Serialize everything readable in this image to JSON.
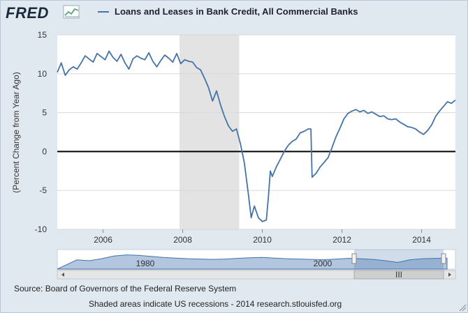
{
  "brand": {
    "logo_text": "FRED"
  },
  "chart_data": {
    "type": "line",
    "title": "Loans and Leases in Bank Credit, All Commercial Banks",
    "ylabel": "(Percent Change from Year Ago)",
    "xlabel": "",
    "ylim": [
      -10,
      15
    ],
    "xlim": [
      2004.85,
      2014.85
    ],
    "yticks": [
      "15",
      "10",
      "5",
      "0",
      "-5",
      "-10"
    ],
    "xticks": [
      "2006",
      "2008",
      "2010",
      "2012",
      "2014"
    ],
    "grid": true,
    "legend": "top",
    "colors": {
      "series": "#4572a7",
      "recession": "#e3e3e3",
      "zero_line": "#000000"
    },
    "recessions": [
      [
        2007.92,
        2009.42
      ]
    ],
    "series": [
      {
        "name": "Loans and Leases in Bank Credit, All Commercial Banks",
        "x": [
          2004.85,
          2004.95,
          2005.05,
          2005.15,
          2005.25,
          2005.35,
          2005.45,
          2005.55,
          2005.65,
          2005.75,
          2005.85,
          2005.95,
          2006.05,
          2006.15,
          2006.25,
          2006.35,
          2006.45,
          2006.55,
          2006.65,
          2006.75,
          2006.85,
          2006.95,
          2007.05,
          2007.15,
          2007.25,
          2007.35,
          2007.45,
          2007.55,
          2007.65,
          2007.75,
          2007.85,
          2007.95,
          2008.05,
          2008.15,
          2008.25,
          2008.35,
          2008.45,
          2008.55,
          2008.65,
          2008.75,
          2008.85,
          2008.95,
          2009.05,
          2009.15,
          2009.25,
          2009.35,
          2009.45,
          2009.55,
          2009.65,
          2009.72,
          2009.8,
          2009.9,
          2010.0,
          2010.1,
          2010.15,
          2010.2,
          2010.25,
          2010.35,
          2010.45,
          2010.55,
          2010.65,
          2010.75,
          2010.85,
          2010.95,
          2011.05,
          2011.15,
          2011.22,
          2011.25,
          2011.35,
          2011.45,
          2011.55,
          2011.65,
          2011.75,
          2011.85,
          2011.95,
          2012.05,
          2012.15,
          2012.25,
          2012.35,
          2012.45,
          2012.55,
          2012.65,
          2012.75,
          2012.85,
          2012.95,
          2013.05,
          2013.15,
          2013.25,
          2013.35,
          2013.45,
          2013.55,
          2013.65,
          2013.75,
          2013.85,
          2013.95,
          2014.05,
          2014.15,
          2014.25,
          2014.35,
          2014.45,
          2014.55,
          2014.65,
          2014.75,
          2014.85
        ],
        "values": [
          10.2,
          11.4,
          9.8,
          10.5,
          10.9,
          10.6,
          11.4,
          12.3,
          11.9,
          11.5,
          12.6,
          12.2,
          11.8,
          12.9,
          12.1,
          11.6,
          12.5,
          11.4,
          10.6,
          11.9,
          12.3,
          12.0,
          11.8,
          12.7,
          11.6,
          10.9,
          11.7,
          12.4,
          12.0,
          11.5,
          12.6,
          11.3,
          11.8,
          11.6,
          11.5,
          10.8,
          10.5,
          9.4,
          8.2,
          6.5,
          7.8,
          6.0,
          4.5,
          3.3,
          2.6,
          2.9,
          1.0,
          -1.5,
          -5.5,
          -8.5,
          -7.0,
          -8.5,
          -9.0,
          -8.8,
          -6.0,
          -2.5,
          -3.2,
          -2.0,
          -1.0,
          0.0,
          0.8,
          1.3,
          1.6,
          2.4,
          2.6,
          2.9,
          2.9,
          -3.3,
          -2.8,
          -2.0,
          -1.4,
          -0.8,
          0.5,
          1.9,
          3.0,
          4.2,
          4.9,
          5.2,
          5.4,
          5.1,
          5.3,
          4.9,
          5.1,
          4.8,
          4.5,
          4.6,
          4.2,
          4.1,
          4.2,
          3.8,
          3.5,
          3.2,
          3.1,
          2.9,
          2.5,
          2.2,
          2.7,
          3.4,
          4.5,
          5.2,
          5.8,
          6.4,
          6.2,
          6.6
        ]
      }
    ],
    "navigator": {
      "labels": [
        "1980",
        "2000"
      ],
      "scroll_glyph": "III"
    }
  },
  "footer": {
    "source": "Source: Board of Governors of the Federal Reserve System",
    "note": "Shaded areas indicate US recessions - 2014 research.stlouisfed.org"
  }
}
